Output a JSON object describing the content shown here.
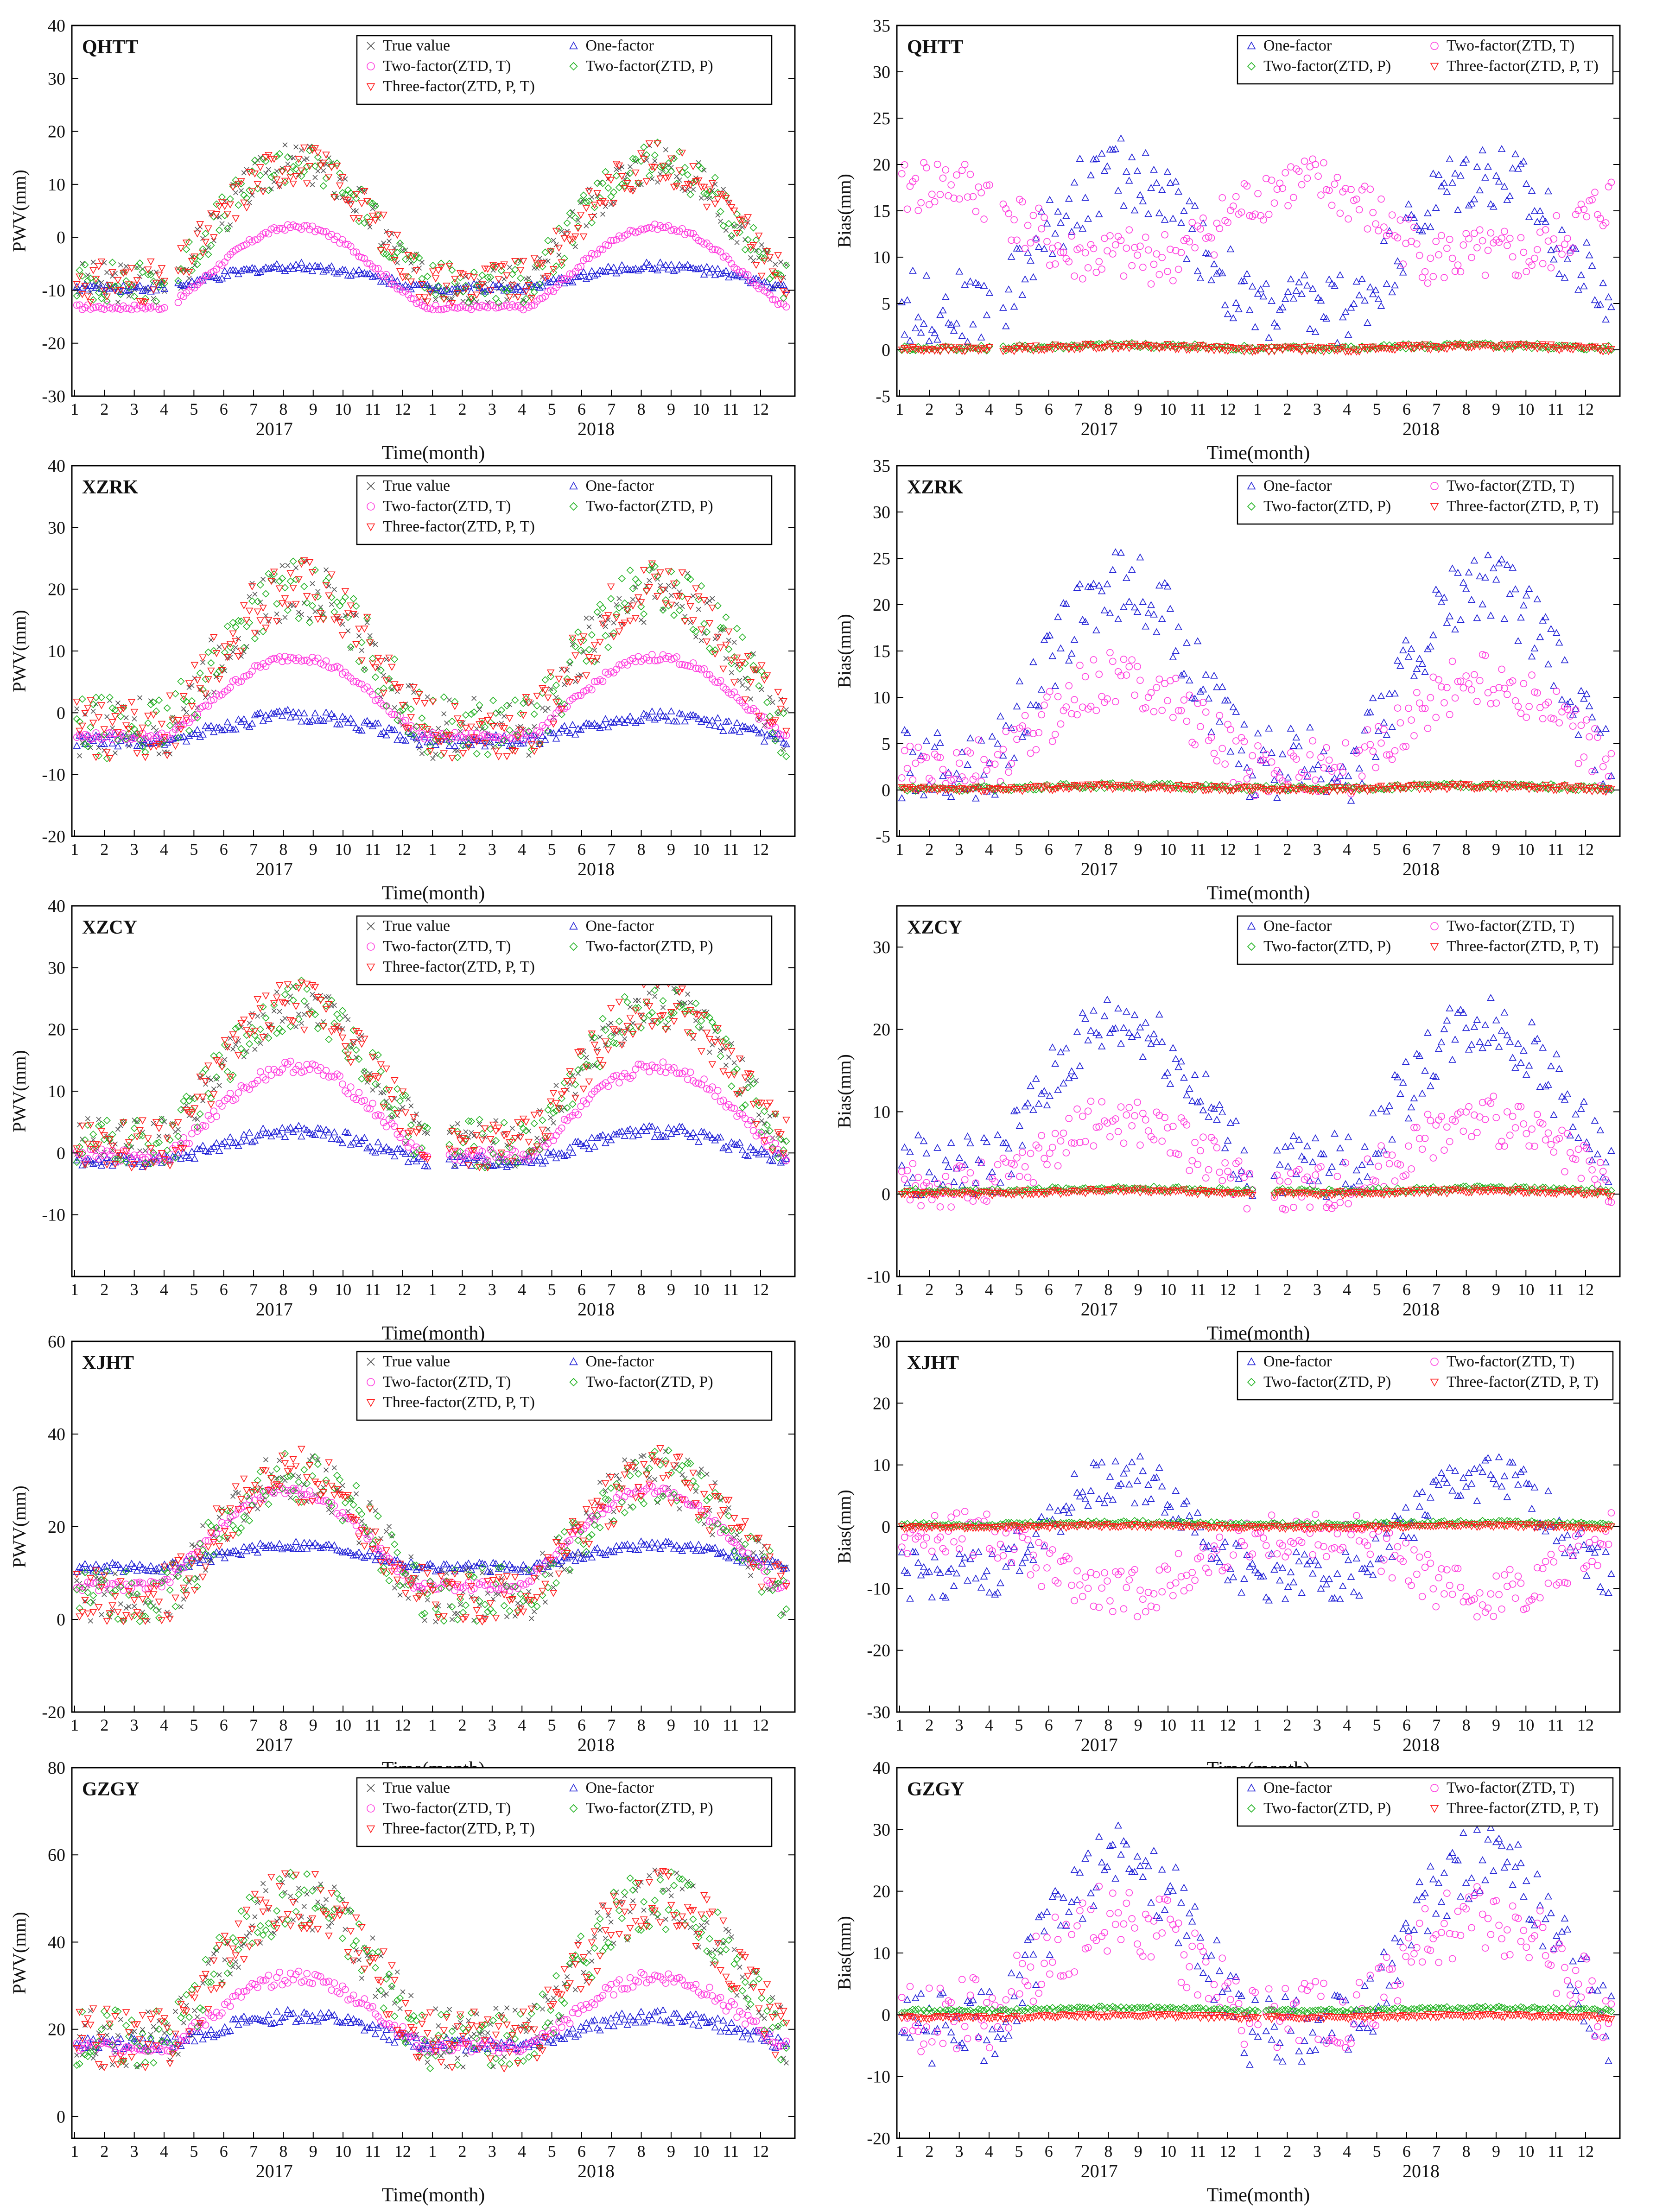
{
  "figure": {
    "colors": {
      "true_value": "#555555",
      "one_factor": "#1f1fd6",
      "two_factor_t": "#ff3dde",
      "two_factor_p": "#22b322",
      "three_factor": "#ff1a1a",
      "axis": "#000000"
    }
  },
  "chart_data": [
    {
      "id": "qhtt-pwv",
      "type": "scatter",
      "station": "QHTT",
      "ylabel": "PWV(mm)",
      "xlabel": "Time(month)",
      "ylim": [
        -30,
        40
      ],
      "yticks": [
        -30,
        -20,
        -10,
        0,
        10,
        20,
        30,
        40
      ],
      "month_ticks": [
        "1",
        "2",
        "3",
        "4",
        "5",
        "6",
        "7",
        "8",
        "9",
        "10",
        "11",
        "12",
        "1",
        "2",
        "3",
        "4",
        "5",
        "6",
        "7",
        "8",
        "9",
        "10",
        "11",
        "12"
      ],
      "years": [
        "2017",
        "2018"
      ],
      "legend": [
        "True value",
        "One-factor",
        "Two-factor(ZTD, T)",
        "Two-factor(ZTD, P)",
        "Three-factor(ZTD, P, T)"
      ],
      "series": [
        {
          "name": "True value",
          "base": 0,
          "amp": 14,
          "phase": 0.62,
          "noise": 4,
          "markers": 0
        },
        {
          "name": "One-factor",
          "base": -8,
          "amp": 2.5,
          "phase": 0.62,
          "noise": 0.8,
          "markers": 1
        },
        {
          "name": "Two-factor(ZTD, T)",
          "base": -7.5,
          "amp": 9.5,
          "phase": 0.62,
          "noise": 0.5,
          "markers": 2
        },
        {
          "name": "Two-factor(ZTD, P)",
          "base": 0,
          "amp": 14,
          "phase": 0.62,
          "noise": 4,
          "markers": 3
        },
        {
          "name": "Three-factor(ZTD, P, T)",
          "base": 0,
          "amp": 14,
          "phase": 0.62,
          "noise": 4,
          "markers": 4
        }
      ],
      "gaps": [
        [
          0.13,
          0.145
        ]
      ]
    },
    {
      "id": "qhtt-bias",
      "type": "scatter",
      "station": "QHTT",
      "ylabel": "Bias(mm)",
      "xlabel": "Time(month)",
      "ylim": [
        -5,
        35
      ],
      "yticks": [
        -5,
        0,
        5,
        10,
        15,
        20,
        25,
        30,
        35
      ],
      "month_ticks": [
        "1",
        "2",
        "3",
        "4",
        "5",
        "6",
        "7",
        "8",
        "9",
        "10",
        "11",
        "12",
        "1",
        "2",
        "3",
        "4",
        "5",
        "6",
        "7",
        "8",
        "9",
        "10",
        "11",
        "12"
      ],
      "years": [
        "2017",
        "2018"
      ],
      "legend": [
        "One-factor",
        "Two-factor(ZTD, T)",
        "Two-factor(ZTD, P)",
        "Three-factor(ZTD, P, T)"
      ],
      "series": [
        {
          "name": "One-factor",
          "base": 10,
          "amp": 9,
          "phase": 0.62,
          "noise": 4,
          "markers": 1
        },
        {
          "name": "Two-factor(ZTD, T)",
          "base": 13,
          "amp": 5,
          "phase": 0.12,
          "noise": 3,
          "markers": 2
        },
        {
          "name": "Two-factor(ZTD, P)",
          "base": 0.3,
          "amp": 0.2,
          "phase": 0.62,
          "noise": 0.3,
          "markers": 3
        },
        {
          "name": "Three-factor(ZTD, P, T)",
          "base": 0.2,
          "amp": 0.2,
          "phase": 0.62,
          "noise": 0.3,
          "markers": 4
        }
      ],
      "gaps": [
        [
          0.13,
          0.145
        ]
      ]
    },
    {
      "id": "xzrk-pwv",
      "type": "scatter",
      "station": "XZRK",
      "ylabel": "PWV(mm)",
      "xlabel": "Time(month)",
      "ylim": [
        -20,
        40
      ],
      "yticks": [
        -20,
        -10,
        0,
        10,
        20,
        30,
        40
      ],
      "month_ticks": [
        "1",
        "2",
        "3",
        "4",
        "5",
        "6",
        "7",
        "8",
        "9",
        "10",
        "11",
        "12",
        "1",
        "2",
        "3",
        "4",
        "5",
        "6",
        "7",
        "8",
        "9",
        "10",
        "11",
        "12"
      ],
      "years": [
        "2017",
        "2018"
      ],
      "legend": [
        "True value",
        "One-factor",
        "Two-factor(ZTD, T)",
        "Two-factor(ZTD, P)",
        "Three-factor(ZTD, P, T)"
      ],
      "series": [
        {
          "name": "True value",
          "base": 6,
          "amp": 14,
          "phase": 0.62,
          "noise": 5,
          "markers": 0
        },
        {
          "name": "One-factor",
          "base": -3,
          "amp": 2.5,
          "phase": 0.62,
          "noise": 1,
          "markers": 1
        },
        {
          "name": "Two-factor(ZTD, T)",
          "base": 1,
          "amp": 8,
          "phase": 0.62,
          "noise": 0.6,
          "markers": 2
        },
        {
          "name": "Two-factor(ZTD, P)",
          "base": 6,
          "amp": 14,
          "phase": 0.62,
          "noise": 5,
          "markers": 3
        },
        {
          "name": "Three-factor(ZTD, P, T)",
          "base": 6,
          "amp": 14,
          "phase": 0.62,
          "noise": 5,
          "markers": 4
        }
      ],
      "gaps": []
    },
    {
      "id": "xzrk-bias",
      "type": "scatter",
      "station": "XZRK",
      "ylabel": "Bias(mm)",
      "xlabel": "Time(month)",
      "ylim": [
        -5,
        35
      ],
      "yticks": [
        -5,
        0,
        5,
        10,
        15,
        20,
        25,
        30,
        35
      ],
      "month_ticks": [
        "1",
        "2",
        "3",
        "4",
        "5",
        "6",
        "7",
        "8",
        "9",
        "10",
        "11",
        "12",
        "1",
        "2",
        "3",
        "4",
        "5",
        "6",
        "7",
        "8",
        "9",
        "10",
        "11",
        "12"
      ],
      "years": [
        "2017",
        "2018"
      ],
      "legend": [
        "One-factor",
        "Two-factor(ZTD, T)",
        "Two-factor(ZTD, P)",
        "Three-factor(ZTD, P, T)"
      ],
      "series": [
        {
          "name": "One-factor",
          "base": 10,
          "amp": 12,
          "phase": 0.62,
          "noise": 4,
          "markers": 1
        },
        {
          "name": "Two-factor(ZTD, T)",
          "base": 6,
          "amp": 6,
          "phase": 0.62,
          "noise": 3,
          "markers": 2
        },
        {
          "name": "Two-factor(ZTD, P)",
          "base": 0.3,
          "amp": 0.2,
          "phase": 0.62,
          "noise": 0.3,
          "markers": 3
        },
        {
          "name": "Three-factor(ZTD, P, T)",
          "base": 0.2,
          "amp": 0.2,
          "phase": 0.62,
          "noise": 0.3,
          "markers": 4
        }
      ],
      "gaps": []
    },
    {
      "id": "xzcy-pwv",
      "type": "scatter",
      "station": "XZCY",
      "ylabel": "PWV(mm)",
      "xlabel": "Time(month)",
      "ylim": [
        -20,
        40
      ],
      "yticks": [
        -10,
        0,
        10,
        20,
        30,
        40
      ],
      "month_ticks": [
        "1",
        "2",
        "3",
        "4",
        "5",
        "6",
        "7",
        "8",
        "9",
        "10",
        "11",
        "12",
        "1",
        "2",
        "3",
        "4",
        "5",
        "6",
        "7",
        "8",
        "9",
        "10",
        "11",
        "12"
      ],
      "years": [
        "2017",
        "2018"
      ],
      "legend": [
        "True value",
        "One-factor",
        "Two-factor(ZTD, T)",
        "Two-factor(ZTD, P)",
        "Three-factor(ZTD, P, T)"
      ],
      "series": [
        {
          "name": "True value",
          "base": 10,
          "amp": 14,
          "phase": 0.62,
          "noise": 4,
          "markers": 0
        },
        {
          "name": "One-factor",
          "base": 0.5,
          "amp": 3,
          "phase": 0.62,
          "noise": 1,
          "markers": 1
        },
        {
          "name": "Two-factor(ZTD, T)",
          "base": 5,
          "amp": 9,
          "phase": 0.62,
          "noise": 1,
          "markers": 2
        },
        {
          "name": "Two-factor(ZTD, P)",
          "base": 10,
          "amp": 14,
          "phase": 0.62,
          "noise": 4,
          "markers": 3
        },
        {
          "name": "Three-factor(ZTD, P, T)",
          "base": 10,
          "amp": 14,
          "phase": 0.62,
          "noise": 4,
          "markers": 4
        }
      ],
      "gaps": [
        [
          0.495,
          0.52
        ]
      ]
    },
    {
      "id": "xzcy-bias",
      "type": "scatter",
      "station": "XZCY",
      "ylabel": "Bias(mm)",
      "xlabel": "Time(month)",
      "ylim": [
        -10,
        35
      ],
      "yticks": [
        -10,
        0,
        10,
        20,
        30
      ],
      "month_ticks": [
        "1",
        "2",
        "3",
        "4",
        "5",
        "6",
        "7",
        "8",
        "9",
        "10",
        "11",
        "12",
        "1",
        "2",
        "3",
        "4",
        "5",
        "6",
        "7",
        "8",
        "9",
        "10",
        "11",
        "12"
      ],
      "years": [
        "2017",
        "2018"
      ],
      "legend": [
        "One-factor",
        "Two-factor(ZTD, T)",
        "Two-factor(ZTD, P)",
        "Three-factor(ZTD, P, T)"
      ],
      "series": [
        {
          "name": "One-factor",
          "base": 10,
          "amp": 11,
          "phase": 0.62,
          "noise": 4,
          "markers": 1
        },
        {
          "name": "Two-factor(ZTD, T)",
          "base": 4,
          "amp": 5,
          "phase": 0.62,
          "noise": 3,
          "markers": 2
        },
        {
          "name": "Two-factor(ZTD, P)",
          "base": 0.5,
          "amp": 0.2,
          "phase": 0.62,
          "noise": 0.3,
          "markers": 3
        },
        {
          "name": "Three-factor(ZTD, P, T)",
          "base": 0.2,
          "amp": 0.2,
          "phase": 0.62,
          "noise": 0.3,
          "markers": 4
        }
      ],
      "gaps": [
        [
          0.495,
          0.52
        ]
      ]
    },
    {
      "id": "xjht-pwv",
      "type": "scatter",
      "station": "XJHT",
      "ylabel": "PWV(mm)",
      "xlabel": "Time(month)",
      "ylim": [
        -20,
        60
      ],
      "yticks": [
        -20,
        0,
        20,
        40,
        60
      ],
      "month_ticks": [
        "1",
        "2",
        "3",
        "4",
        "5",
        "6",
        "7",
        "8",
        "9",
        "10",
        "11",
        "12",
        "1",
        "2",
        "3",
        "4",
        "5",
        "6",
        "7",
        "8",
        "9",
        "10",
        "11",
        "12"
      ],
      "years": [
        "2017",
        "2018"
      ],
      "legend": [
        "True value",
        "One-factor",
        "Two-factor(ZTD, T)",
        "Two-factor(ZTD, P)",
        "Three-factor(ZTD, P, T)"
      ],
      "series": [
        {
          "name": "True value",
          "base": 15,
          "amp": 16,
          "phase": 0.62,
          "noise": 6,
          "markers": 0
        },
        {
          "name": "One-factor",
          "base": 13,
          "amp": 3,
          "phase": 0.62,
          "noise": 1,
          "markers": 1
        },
        {
          "name": "Two-factor(ZTD, T)",
          "base": 15,
          "amp": 13,
          "phase": 0.6,
          "noise": 1,
          "markers": 2
        },
        {
          "name": "Two-factor(ZTD, P)",
          "base": 15,
          "amp": 16,
          "phase": 0.62,
          "noise": 6,
          "markers": 3
        },
        {
          "name": "Three-factor(ZTD, P, T)",
          "base": 15,
          "amp": 16,
          "phase": 0.62,
          "noise": 6,
          "markers": 4
        }
      ],
      "gaps": []
    },
    {
      "id": "xjht-bias",
      "type": "scatter",
      "station": "XJHT",
      "ylabel": "Bias(mm)",
      "xlabel": "Time(month)",
      "ylim": [
        -30,
        30
      ],
      "yticks": [
        -30,
        -20,
        -10,
        0,
        10,
        20,
        30
      ],
      "month_ticks": [
        "1",
        "2",
        "3",
        "4",
        "5",
        "6",
        "7",
        "8",
        "9",
        "10",
        "11",
        "12",
        "1",
        "2",
        "3",
        "4",
        "5",
        "6",
        "7",
        "8",
        "9",
        "10",
        "11",
        "12"
      ],
      "years": [
        "2017",
        "2018"
      ],
      "legend": [
        "One-factor",
        "Two-factor(ZTD, T)",
        "Two-factor(ZTD, P)",
        "Three-factor(ZTD, P, T)"
      ],
      "series": [
        {
          "name": "One-factor",
          "base": -2,
          "amp": 10,
          "phase": 0.62,
          "noise": 4,
          "markers": 1
        },
        {
          "name": "Two-factor(ZTD, T)",
          "base": -5,
          "amp": -6,
          "phase": 0.62,
          "noise": 4,
          "markers": 2
        },
        {
          "name": "Two-factor(ZTD, P)",
          "base": 0.5,
          "amp": 0.2,
          "phase": 0.62,
          "noise": 0.3,
          "markers": 3
        },
        {
          "name": "Three-factor(ZTD, P, T)",
          "base": 0,
          "amp": 0.2,
          "phase": 0.62,
          "noise": 0.3,
          "markers": 4
        }
      ],
      "gaps": []
    },
    {
      "id": "gzgy-pwv",
      "type": "scatter",
      "station": "GZGY",
      "ylabel": "PWV(mm)",
      "xlabel": "Time(month)",
      "ylim": [
        -5,
        80
      ],
      "yticks": [
        0,
        20,
        40,
        60,
        80
      ],
      "month_ticks": [
        "1",
        "2",
        "3",
        "4",
        "5",
        "6",
        "7",
        "8",
        "9",
        "10",
        "11",
        "12",
        "1",
        "2",
        "3",
        "4",
        "5",
        "6",
        "7",
        "8",
        "9",
        "10",
        "11",
        "12"
      ],
      "years": [
        "2017",
        "2018"
      ],
      "legend": [
        "True value",
        "One-factor",
        "Two-factor(ZTD, T)",
        "Two-factor(ZTD, P)",
        "Three-factor(ZTD, P, T)"
      ],
      "series": [
        {
          "name": "True value",
          "base": 30,
          "amp": 20,
          "phase": 0.62,
          "noise": 7,
          "markers": 0
        },
        {
          "name": "One-factor",
          "base": 19,
          "amp": 4,
          "phase": 0.62,
          "noise": 1.5,
          "markers": 1
        },
        {
          "name": "Two-factor(ZTD, T)",
          "base": 22,
          "amp": 10,
          "phase": 0.62,
          "noise": 1.5,
          "markers": 2
        },
        {
          "name": "Two-factor(ZTD, P)",
          "base": 30,
          "amp": 20,
          "phase": 0.62,
          "noise": 7,
          "markers": 3
        },
        {
          "name": "Three-factor(ZTD, P, T)",
          "base": 30,
          "amp": 20,
          "phase": 0.62,
          "noise": 7,
          "markers": 4
        }
      ],
      "gaps": []
    },
    {
      "id": "gzgy-bias",
      "type": "scatter",
      "station": "GZGY",
      "ylabel": "Bias(mm)",
      "xlabel": "Time(month)",
      "ylim": [
        -20,
        40
      ],
      "yticks": [
        -20,
        -10,
        0,
        10,
        20,
        30,
        40
      ],
      "month_ticks": [
        "1",
        "2",
        "3",
        "4",
        "5",
        "6",
        "7",
        "8",
        "9",
        "10",
        "11",
        "12",
        "1",
        "2",
        "3",
        "4",
        "5",
        "6",
        "7",
        "8",
        "9",
        "10",
        "11",
        "12"
      ],
      "years": [
        "2017",
        "2018"
      ],
      "legend": [
        "One-factor",
        "Two-factor(ZTD, T)",
        "Two-factor(ZTD, P)",
        "Three-factor(ZTD, P, T)"
      ],
      "series": [
        {
          "name": "One-factor",
          "base": 8,
          "amp": 17,
          "phase": 0.62,
          "noise": 6,
          "markers": 1
        },
        {
          "name": "Two-factor(ZTD, T)",
          "base": 6,
          "amp": 10,
          "phase": 0.62,
          "noise": 6,
          "markers": 2
        },
        {
          "name": "Two-factor(ZTD, P)",
          "base": 0.8,
          "amp": 0.3,
          "phase": 0.62,
          "noise": 0.3,
          "markers": 3
        },
        {
          "name": "Three-factor(ZTD, P, T)",
          "base": -0.3,
          "amp": 0.2,
          "phase": 0.62,
          "noise": 0.3,
          "markers": 4
        }
      ],
      "gaps": [
        [
          0.5,
          0.51
        ]
      ]
    }
  ]
}
